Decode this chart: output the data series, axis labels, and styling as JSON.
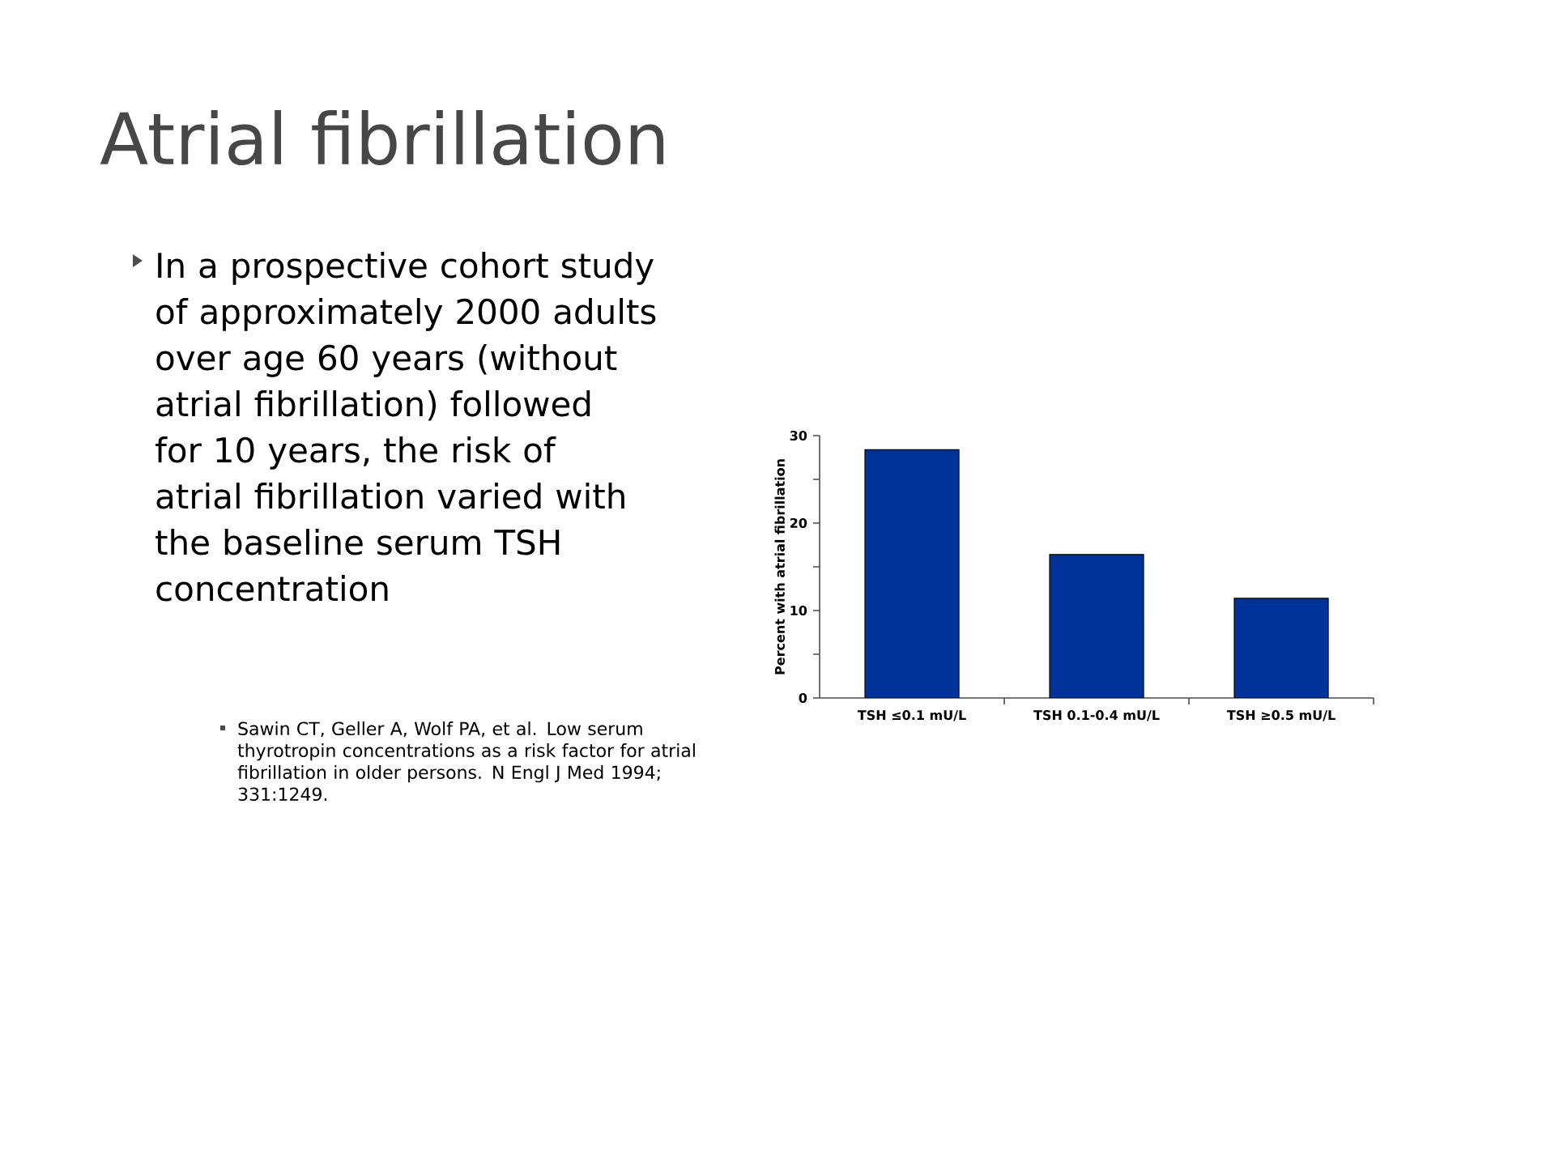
{
  "chart_data": {
    "type": "bar",
    "title": "Atrial fibrillation",
    "ylabel": "Percent with atrial fibrillation",
    "categories": [
      "TSH ≤0.1 mU/L",
      "TSH 0.1-0.4 mU/L",
      "TSH ≥0.5 mU/L"
    ],
    "values": [
      28.4,
      16.4,
      11.4
    ],
    "color": "#003399",
    "ylim": [
      0,
      30
    ],
    "yticks": [
      0,
      {
        "value": 5,
        "label": null
      },
      10,
      {
        "value": 15,
        "label": null
      },
      20,
      {
        "value": 25,
        "label": null
      },
      30
    ],
    "annotations": [
      "In a prospective cohort study of approximately 2000 adults over age 60 years (without atrial fibrillation) followed for 10 years, the risk of atrial fibrillation varied with the baseline serum TSH concentration",
      "Sawin CT, Geller A, Wolf PA, et al. Low serum thyrotropin concentrations as a risk factor for atrial fibrillation in older persons. N Engl J Med 1994; 331:1249."
    ]
  }
}
